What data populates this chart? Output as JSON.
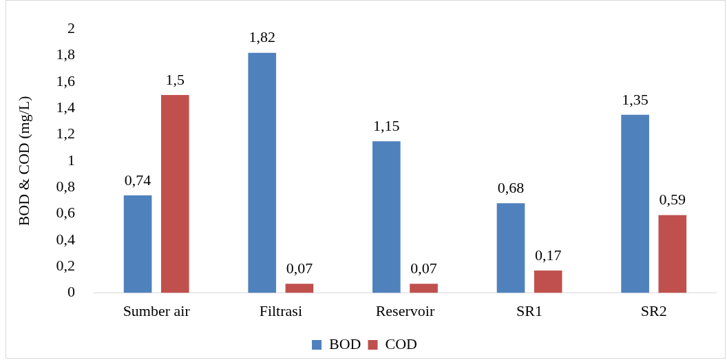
{
  "chart_data": {
    "type": "bar",
    "ylabel": "BOD & COD (mg/L)",
    "categories": [
      "Sumber air",
      "Filtrasi",
      "Reservoir",
      "SR1",
      "SR2"
    ],
    "series": [
      {
        "name": "BOD",
        "color": "#4f81bd",
        "values": [
          0.74,
          1.82,
          1.15,
          0.68,
          1.35
        ],
        "value_labels": [
          "0,74",
          "1,82",
          "1,15",
          "0,68",
          "1,35"
        ]
      },
      {
        "name": "COD",
        "color": "#c0504d",
        "values": [
          1.5,
          0.07,
          0.07,
          0.17,
          0.59
        ],
        "value_labels": [
          "1,5",
          "0,07",
          "0,07",
          "0,17",
          "0,59"
        ]
      }
    ],
    "ylim": [
      0,
      2
    ],
    "yticks": [
      0,
      {
        "value": 0.2,
        "label": "0,2"
      },
      {
        "value": 0.4,
        "label": "0,4"
      },
      {
        "value": 0.6,
        "label": "0,6"
      },
      {
        "value": 0.8,
        "label": "0,8"
      },
      1,
      {
        "value": 1.2,
        "label": "1,2"
      },
      {
        "value": 1.4,
        "label": "1,4"
      },
      {
        "value": 1.6,
        "label": "1,6"
      },
      {
        "value": 1.8,
        "label": "1,8"
      },
      2
    ],
    "grid": false,
    "legend": "bottom"
  }
}
